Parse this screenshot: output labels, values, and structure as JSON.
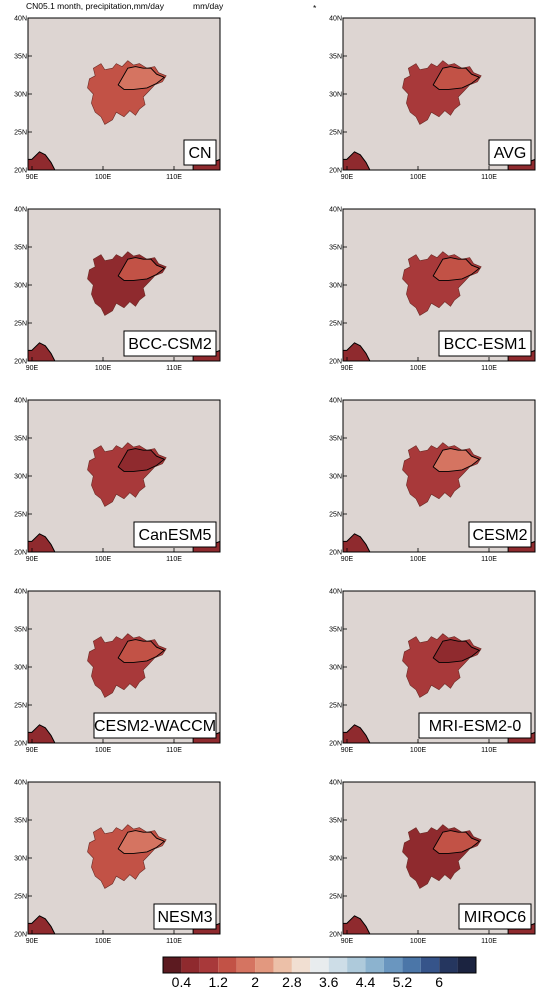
{
  "header": {
    "left_title": "CN05.1 month, precipitation,mm/day",
    "units": "mm/day",
    "marker": "*"
  },
  "chart_data": {
    "type": "heatmap",
    "variable": "precipitation",
    "units": "mm/day",
    "x_ticks": [
      "90E",
      "100E",
      "110E"
    ],
    "y_ticks": [
      "40N",
      "35N",
      "30N",
      "25N",
      "20N"
    ],
    "panels": [
      {
        "name": "CN",
        "base_level": 3,
        "upper_level": 4
      },
      {
        "name": "AVG",
        "base_level": 2,
        "upper_level": 3
      },
      {
        "name": "BCC-CSM2",
        "base_level": 1,
        "upper_level": 3
      },
      {
        "name": "BCC-ESM1",
        "base_level": 2,
        "upper_level": 3
      },
      {
        "name": "CanESM5",
        "base_level": 2,
        "upper_level": 1
      },
      {
        "name": "CESM2",
        "base_level": 2,
        "upper_level": 4
      },
      {
        "name": "CESM2-WACCM",
        "base_level": 2,
        "upper_level": 3
      },
      {
        "name": "MRI-ESM2-0",
        "base_level": 2,
        "upper_level": 1
      },
      {
        "name": "NESM3",
        "base_level": 3,
        "upper_level": 4
      },
      {
        "name": "MIROC6",
        "base_level": 1,
        "upper_level": 3
      }
    ],
    "colorbar": {
      "labels": [
        "0.4",
        "1.2",
        "2",
        "2.8",
        "3.6",
        "4.4",
        "5.2",
        "6"
      ],
      "colors": [
        "#5c1a20",
        "#8f2a2e",
        "#a8393a",
        "#c25246",
        "#d57461",
        "#e2987f",
        "#ecc0a8",
        "#f1dfd2",
        "#e8ecee",
        "#cddde7",
        "#aecadb",
        "#8cb3cf",
        "#6a96bf",
        "#4b76a8",
        "#36548a",
        "#25365f",
        "#1b2340"
      ]
    }
  }
}
